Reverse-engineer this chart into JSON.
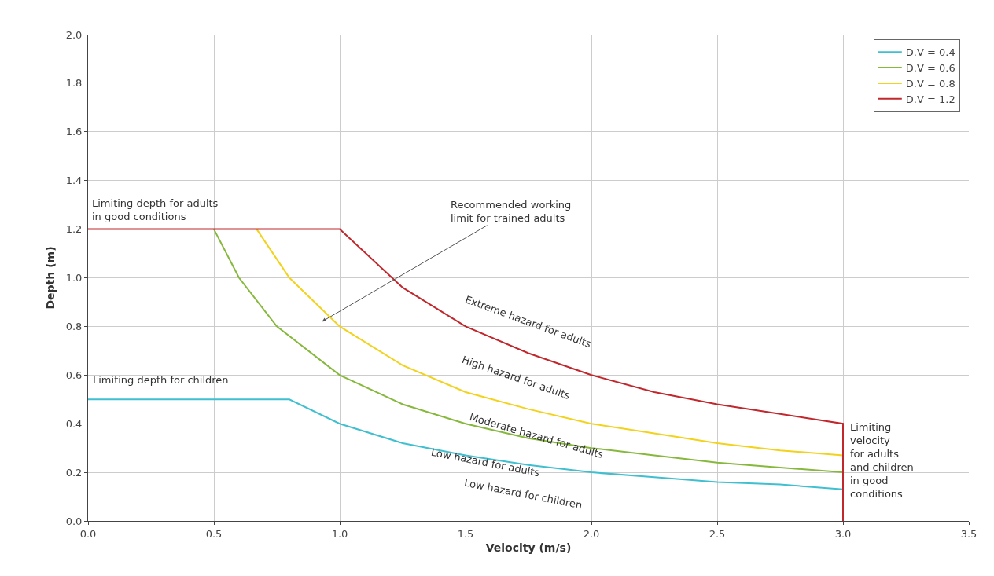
{
  "chart_data": {
    "type": "line",
    "xlabel": "Velocity (m/s)",
    "ylabel": "Depth (m)",
    "xlim": [
      0,
      3.5
    ],
    "ylim": [
      0,
      2
    ],
    "xticks": [
      {
        "value": 0,
        "label": "0.0"
      },
      {
        "value": 0.5,
        "label": "0.5"
      },
      {
        "value": 1,
        "label": "1.0"
      },
      {
        "value": 1.5,
        "label": "1.5"
      },
      {
        "value": 2,
        "label": "2.0"
      },
      {
        "value": 2.5,
        "label": "2.5"
      },
      {
        "value": 3,
        "label": "3.0"
      },
      {
        "value": 3.5,
        "label": "3.5"
      }
    ],
    "yticks": [
      {
        "value": 0,
        "label": "0.0"
      },
      {
        "value": 0.2,
        "label": "0.2"
      },
      {
        "value": 0.4,
        "label": "0.4"
      },
      {
        "value": 0.6,
        "label": "0.6"
      },
      {
        "value": 0.8,
        "label": "0.8"
      },
      {
        "value": 1,
        "label": "1.0"
      },
      {
        "value": 1.2,
        "label": "1.2"
      },
      {
        "value": 1.4,
        "label": "1.4"
      },
      {
        "value": 1.6,
        "label": "1.6"
      },
      {
        "value": 1.8,
        "label": "1.8"
      },
      {
        "value": 2,
        "label": "2.0"
      }
    ],
    "grid": true,
    "legend": "top right",
    "series": [
      {
        "name": "D.V = 0.4",
        "color": "#3fbfcf",
        "x": [
          0,
          0.8,
          1,
          1.25,
          1.5,
          1.75,
          2,
          2.25,
          2.5,
          2.75,
          3
        ],
        "values": [
          0.5,
          0.5,
          0.4,
          0.32,
          0.27,
          0.23,
          0.2,
          0.18,
          0.16,
          0.15,
          0.13
        ]
      },
      {
        "name": "D.V = 0.6",
        "color": "#86b83c",
        "x": [
          0.5,
          0.6,
          0.75,
          1,
          1.25,
          1.5,
          1.75,
          2,
          2.25,
          2.5,
          2.75,
          3
        ],
        "values": [
          1.2,
          1.0,
          0.8,
          0.6,
          0.48,
          0.4,
          0.34,
          0.3,
          0.27,
          0.24,
          0.22,
          0.2
        ]
      },
      {
        "name": "D.V = 0.8",
        "color": "#f2d21b",
        "x": [
          0.67,
          0.8,
          1,
          1.25,
          1.5,
          1.75,
          2,
          2.25,
          2.5,
          2.75,
          3
        ],
        "values": [
          1.2,
          1.0,
          0.8,
          0.64,
          0.53,
          0.46,
          0.4,
          0.36,
          0.32,
          0.29,
          0.27
        ]
      },
      {
        "name": "D.V = 1.2",
        "color": "#c0282d",
        "x": [
          0,
          1,
          1.25,
          1.5,
          1.75,
          2,
          2.25,
          2.5,
          2.75,
          3,
          3
        ],
        "values": [
          1.2,
          1.2,
          0.96,
          0.8,
          0.69,
          0.6,
          0.53,
          0.48,
          0.44,
          0.4,
          0
        ]
      }
    ],
    "annotations": [
      "Limiting depth for adults\nin good conditions",
      "Recommended working\nlimit for trained adults",
      "Extreme hazard for adults",
      "High hazard for adults",
      "Moderate hazard for adults",
      "Low hazard for adults",
      "Low hazard for children",
      "Limiting depth for children",
      "Limiting\nvelocity\nfor adults\nand children\nin good\nconditions"
    ]
  }
}
